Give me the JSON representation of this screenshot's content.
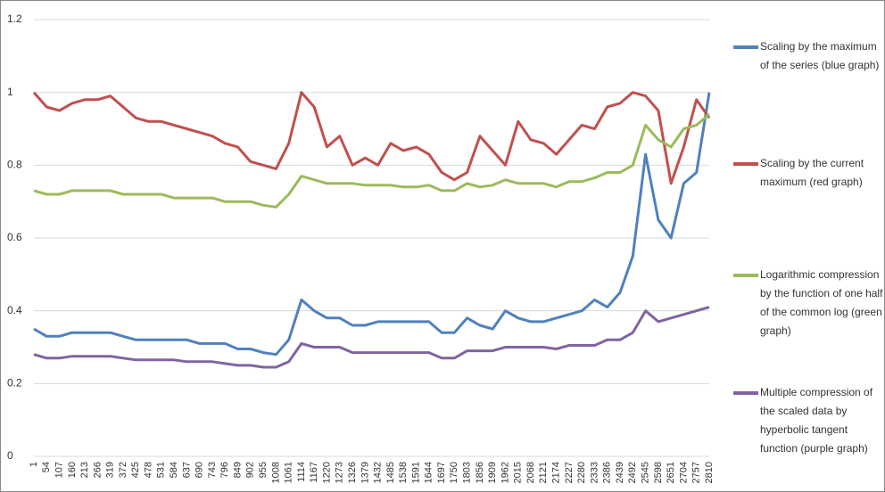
{
  "chart_data": {
    "type": "line",
    "categories": [
      1,
      54,
      107,
      160,
      213,
      266,
      319,
      372,
      425,
      478,
      531,
      584,
      637,
      690,
      743,
      796,
      849,
      902,
      955,
      1008,
      1061,
      1114,
      1167,
      1220,
      1273,
      1326,
      1379,
      1432,
      1485,
      1538,
      1591,
      1644,
      1697,
      1750,
      1803,
      1856,
      1909,
      1962,
      2015,
      2068,
      2121,
      2174,
      2227,
      2280,
      2333,
      2386,
      2439,
      2492,
      2545,
      2598,
      2651,
      2704,
      2757,
      2810
    ],
    "series": [
      {
        "name": "Scaling by the maximum of the series (blue graph)",
        "color": "#4f81bd",
        "values": [
          0.35,
          0.33,
          0.33,
          0.34,
          0.34,
          0.34,
          0.34,
          0.33,
          0.32,
          0.32,
          0.32,
          0.32,
          0.32,
          0.31,
          0.31,
          0.31,
          0.295,
          0.295,
          0.285,
          0.28,
          0.32,
          0.43,
          0.4,
          0.38,
          0.38,
          0.36,
          0.36,
          0.37,
          0.37,
          0.37,
          0.37,
          0.37,
          0.34,
          0.34,
          0.38,
          0.36,
          0.35,
          0.4,
          0.38,
          0.37,
          0.37,
          0.38,
          0.39,
          0.4,
          0.43,
          0.41,
          0.45,
          0.55,
          0.83,
          0.65,
          0.6,
          0.75,
          0.78,
          1.0
        ]
      },
      {
        "name": "Scaling by the current maximum (red graph)",
        "color": "#c0504d",
        "values": [
          1.0,
          0.96,
          0.95,
          0.97,
          0.98,
          0.98,
          0.99,
          0.96,
          0.93,
          0.92,
          0.92,
          0.91,
          0.9,
          0.89,
          0.88,
          0.86,
          0.85,
          0.81,
          0.8,
          0.79,
          0.86,
          1.0,
          0.96,
          0.85,
          0.88,
          0.8,
          0.82,
          0.8,
          0.86,
          0.84,
          0.85,
          0.83,
          0.78,
          0.76,
          0.78,
          0.88,
          0.84,
          0.8,
          0.92,
          0.87,
          0.86,
          0.83,
          0.87,
          0.91,
          0.9,
          0.96,
          0.97,
          1.0,
          0.99,
          0.95,
          0.75,
          0.85,
          0.98,
          0.93
        ]
      },
      {
        "name": "Logarithmic compression by the function of one half of the common log (green graph)",
        "color": "#9bbb59",
        "values": [
          0.73,
          0.72,
          0.72,
          0.73,
          0.73,
          0.73,
          0.73,
          0.72,
          0.72,
          0.72,
          0.72,
          0.71,
          0.71,
          0.71,
          0.71,
          0.7,
          0.7,
          0.7,
          0.69,
          0.685,
          0.72,
          0.77,
          0.76,
          0.75,
          0.75,
          0.75,
          0.745,
          0.745,
          0.745,
          0.74,
          0.74,
          0.745,
          0.73,
          0.73,
          0.75,
          0.74,
          0.745,
          0.76,
          0.75,
          0.75,
          0.75,
          0.74,
          0.755,
          0.755,
          0.765,
          0.78,
          0.78,
          0.8,
          0.91,
          0.87,
          0.85,
          0.9,
          0.91,
          0.94
        ]
      },
      {
        "name": "Multiple compression of the scaled data by hyperbolic tangent function (purple graph)",
        "color": "#8064a2",
        "values": [
          0.28,
          0.27,
          0.27,
          0.275,
          0.275,
          0.275,
          0.275,
          0.27,
          0.265,
          0.265,
          0.265,
          0.265,
          0.26,
          0.26,
          0.26,
          0.255,
          0.25,
          0.25,
          0.245,
          0.245,
          0.26,
          0.31,
          0.3,
          0.3,
          0.3,
          0.285,
          0.285,
          0.285,
          0.285,
          0.285,
          0.285,
          0.285,
          0.27,
          0.27,
          0.29,
          0.29,
          0.29,
          0.3,
          0.3,
          0.3,
          0.3,
          0.295,
          0.305,
          0.305,
          0.305,
          0.32,
          0.32,
          0.34,
          0.4,
          0.37,
          0.38,
          0.39,
          0.4,
          0.41
        ]
      }
    ],
    "ylim": [
      0,
      1.2
    ],
    "yticks": [
      0,
      0.2,
      0.4,
      0.6,
      0.8,
      1,
      1.2
    ],
    "grid": true,
    "legend": "right"
  }
}
